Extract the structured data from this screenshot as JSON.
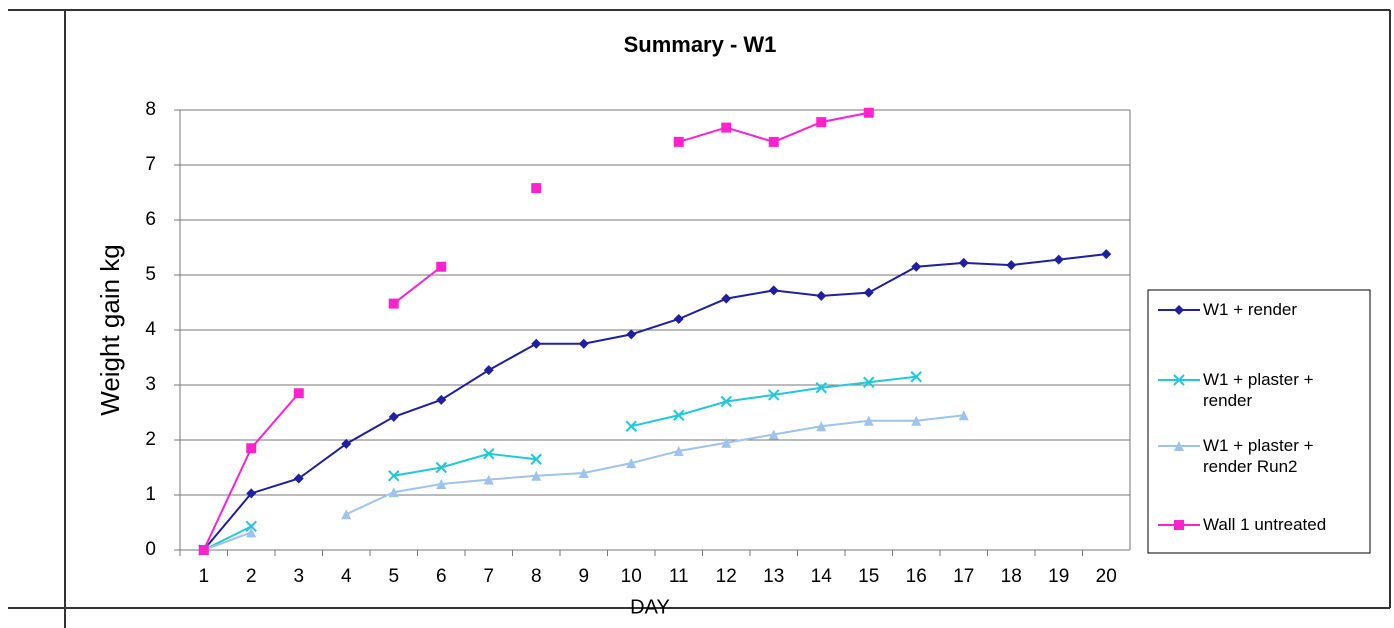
{
  "chart_data": {
    "type": "line",
    "title": "Summary - W1",
    "x_label": "DAY",
    "y_label": "Weight gain kg",
    "categories": [
      1,
      2,
      3,
      4,
      5,
      6,
      7,
      8,
      9,
      10,
      11,
      12,
      13,
      14,
      15,
      16,
      17,
      18,
      19,
      20
    ],
    "ylim": [
      0,
      8
    ],
    "yticks": [
      0,
      1,
      2,
      3,
      4,
      5,
      6,
      7,
      8
    ],
    "grid": true,
    "legend": "right",
    "series": [
      {
        "name": "W1 + render",
        "color": "#1f1fa0",
        "marker": "diamond",
        "values": [
          0,
          1.03,
          1.3,
          1.93,
          2.42,
          2.73,
          3.27,
          3.75,
          3.75,
          3.92,
          4.2,
          4.57,
          4.72,
          4.62,
          4.68,
          5.15,
          5.22,
          5.18,
          5.28,
          5.38
        ]
      },
      {
        "name": "W1 + plaster + render",
        "color": "#22c8d8",
        "marker": "x",
        "values": [
          0,
          0.43,
          null,
          null,
          1.35,
          1.5,
          1.75,
          1.65,
          null,
          2.25,
          2.45,
          2.7,
          2.82,
          2.95,
          3.05,
          3.15,
          null,
          null,
          null,
          null
        ]
      },
      {
        "name": "W1 + plaster + render Run2",
        "color": "#9ec3ec",
        "marker": "triangle",
        "values": [
          0,
          0.32,
          null,
          0.65,
          1.05,
          1.2,
          1.28,
          1.35,
          1.4,
          1.58,
          1.8,
          1.95,
          2.1,
          2.25,
          2.35,
          2.35,
          2.45,
          null,
          null,
          null
        ]
      },
      {
        "name": "Wall 1 untreated",
        "color": "#ff22cc",
        "marker": "square",
        "values": [
          0,
          1.85,
          2.85,
          null,
          4.48,
          5.15,
          null,
          6.58,
          null,
          null,
          7.42,
          7.68,
          7.42,
          7.78,
          7.95,
          null,
          null,
          null,
          null,
          null
        ]
      }
    ]
  }
}
